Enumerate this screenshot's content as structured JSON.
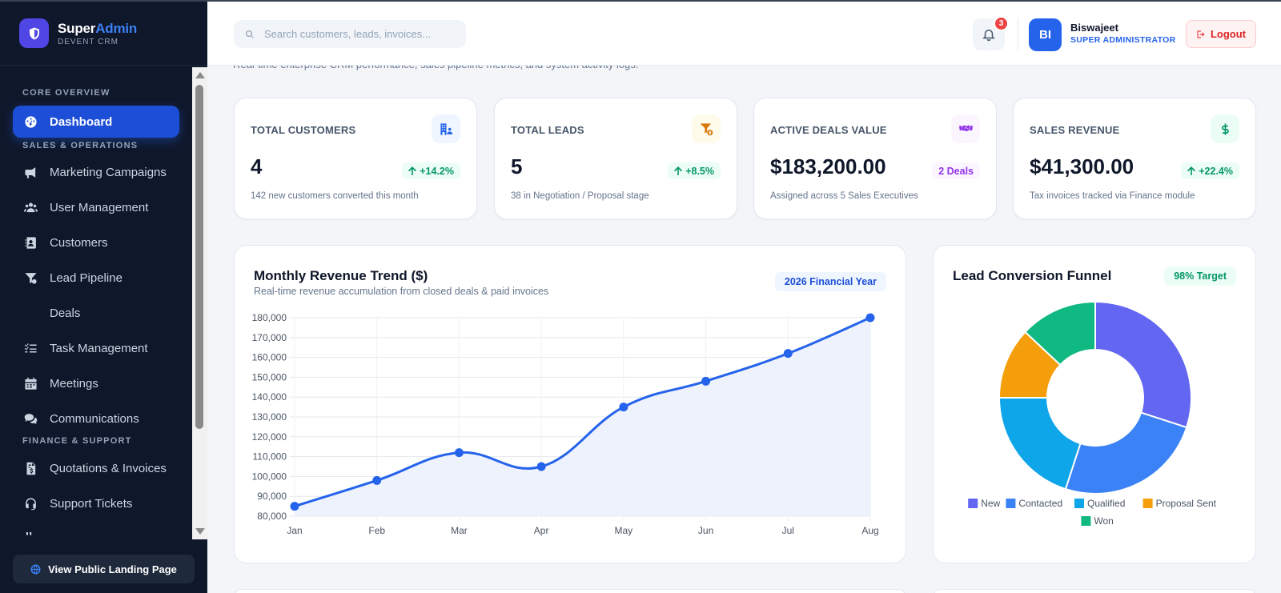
{
  "brand": {
    "name_part1": "Super",
    "name_part2": "Admin",
    "sub": "DEVENT CRM"
  },
  "nav": {
    "sections": [
      "CORE OVERVIEW",
      "SALES & OPERATIONS",
      "FINANCE & SUPPORT"
    ],
    "items": [
      {
        "label": "Dashboard",
        "icon": "dashboard-icon",
        "active": true
      },
      {
        "label": "Marketing Campaigns",
        "icon": "megaphone-icon"
      },
      {
        "label": "User Management",
        "icon": "users-icon"
      },
      {
        "label": "Customers",
        "icon": "address-card-icon"
      },
      {
        "label": "Lead Pipeline",
        "icon": "funnel-icon"
      },
      {
        "label": "Deals",
        "icon": ""
      },
      {
        "label": "Task Management",
        "icon": "task-list-icon"
      },
      {
        "label": "Meetings",
        "icon": "calendar-icon"
      },
      {
        "label": "Communications",
        "icon": "chat-icon"
      },
      {
        "label": "Quotations & Invoices",
        "icon": "invoice-icon"
      },
      {
        "label": "Support Tickets",
        "icon": "headset-icon"
      }
    ],
    "landing_button": "View Public Landing Page"
  },
  "header": {
    "search_placeholder": "Search customers, leads, invoices...",
    "notification_count": "3",
    "user_initials": "BI",
    "user_name": "Biswajeet",
    "user_role": "SUPER ADMINISTRATOR",
    "logout_label": "Logout"
  },
  "page_subtitle": "Real-time enterprise CRM performance, sales pipeline metrics, and system activity logs.",
  "stats": [
    {
      "label": "TOTAL CUSTOMERS",
      "value": "4",
      "delta": "+14.2%",
      "note": "142 new customers converted this month",
      "icon": "building-users-icon",
      "color": "#2563eb"
    },
    {
      "label": "TOTAL LEADS",
      "value": "5",
      "delta": "+8.5%",
      "note": "38 in Negotiation / Proposal stage",
      "icon": "funnel-dollar-icon",
      "color": "#d97706"
    },
    {
      "label": "ACTIVE DEALS VALUE",
      "value": "$183,200.00",
      "delta": "2 Deals",
      "note": "Assigned across 5 Sales Executives",
      "icon": "handshake-icon",
      "color": "#9333ea"
    },
    {
      "label": "SALES REVENUE",
      "value": "$41,300.00",
      "delta": "+22.4%",
      "note": "Tax invoices tracked via Finance module",
      "icon": "dollar-icon",
      "color": "#059669"
    }
  ],
  "revenue_card": {
    "title": "Monthly Revenue Trend ($)",
    "subtitle": "Real-time revenue accumulation from closed deals & paid invoices",
    "badge": "2026 Financial Year"
  },
  "funnel_card": {
    "title": "Lead Conversion Funnel",
    "badge": "98% Target"
  },
  "chart_data": [
    {
      "type": "area",
      "title": "Monthly Revenue Trend ($)",
      "categories": [
        "Jan",
        "Feb",
        "Mar",
        "Apr",
        "May",
        "Jun",
        "Jul",
        "Aug"
      ],
      "values": [
        85000,
        98000,
        112000,
        105000,
        135000,
        148000,
        162000,
        180000
      ],
      "ylim": [
        80000,
        180000
      ],
      "yticks": [
        "80,000",
        "90,000",
        "100,000",
        "110,000",
        "120,000",
        "130,000",
        "140,000",
        "150,000",
        "160,000",
        "170,000",
        "180,000"
      ],
      "grid": true,
      "color": "#2563eb"
    },
    {
      "type": "pie",
      "title": "Lead Conversion Funnel",
      "categories": [
        "New",
        "Contacted",
        "Qualified",
        "Proposal Sent",
        "Won"
      ],
      "values": [
        30,
        25,
        20,
        12,
        13
      ],
      "colors": [
        "#6366f1",
        "#3b82f6",
        "#0ea5e9",
        "#f59e0b",
        "#10b981"
      ],
      "legend": "bottom"
    }
  ]
}
